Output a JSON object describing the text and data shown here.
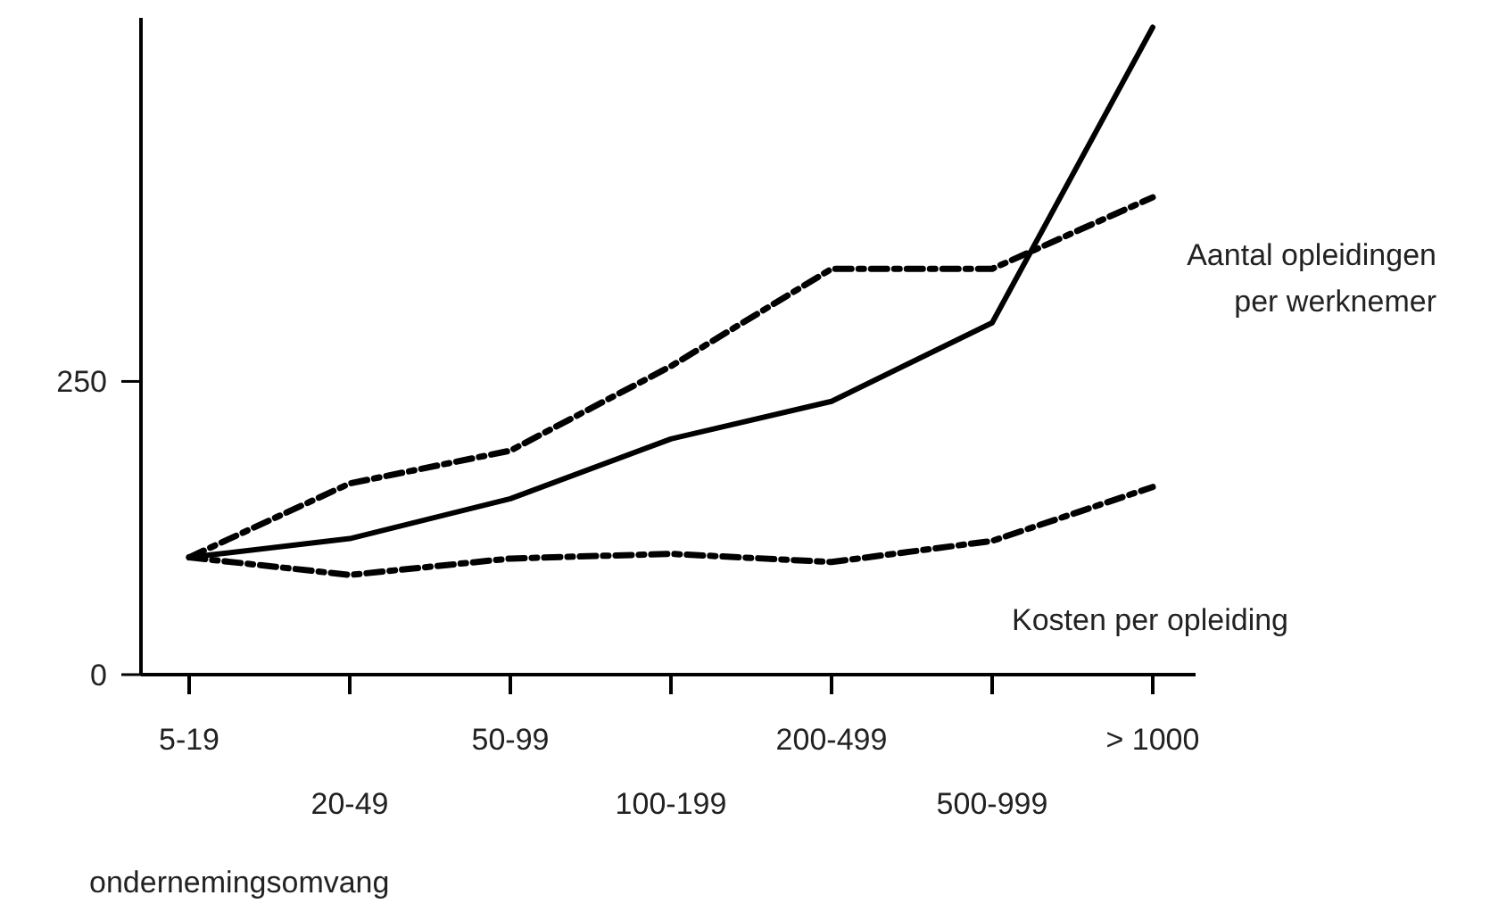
{
  "chart_data": {
    "type": "line",
    "xlabel": "ondernemingsomvang",
    "categories": [
      "5-19",
      "20-49",
      "50-99",
      "100-199",
      "200-499",
      "500-999",
      "> 1000"
    ],
    "ylim": [
      0,
      560
    ],
    "yticks": [
      0,
      250
    ],
    "grid": false,
    "marker": "none",
    "series": [
      {
        "color": "#000000",
        "line_style": "solid",
        "values": [
          100,
          116,
          150,
          201,
          233,
          300,
          552
        ]
      },
      {
        "name": "Aantal opleidingen per werknemer",
        "color": "#000000",
        "line_style": "dashed",
        "values": [
          100,
          163,
          191,
          263,
          346,
          346,
          407
        ]
      },
      {
        "name": "Kosten per opleiding",
        "color": "#000000",
        "line_style": "dashed",
        "values": [
          100,
          85,
          99,
          103,
          96,
          114,
          160
        ]
      }
    ]
  }
}
